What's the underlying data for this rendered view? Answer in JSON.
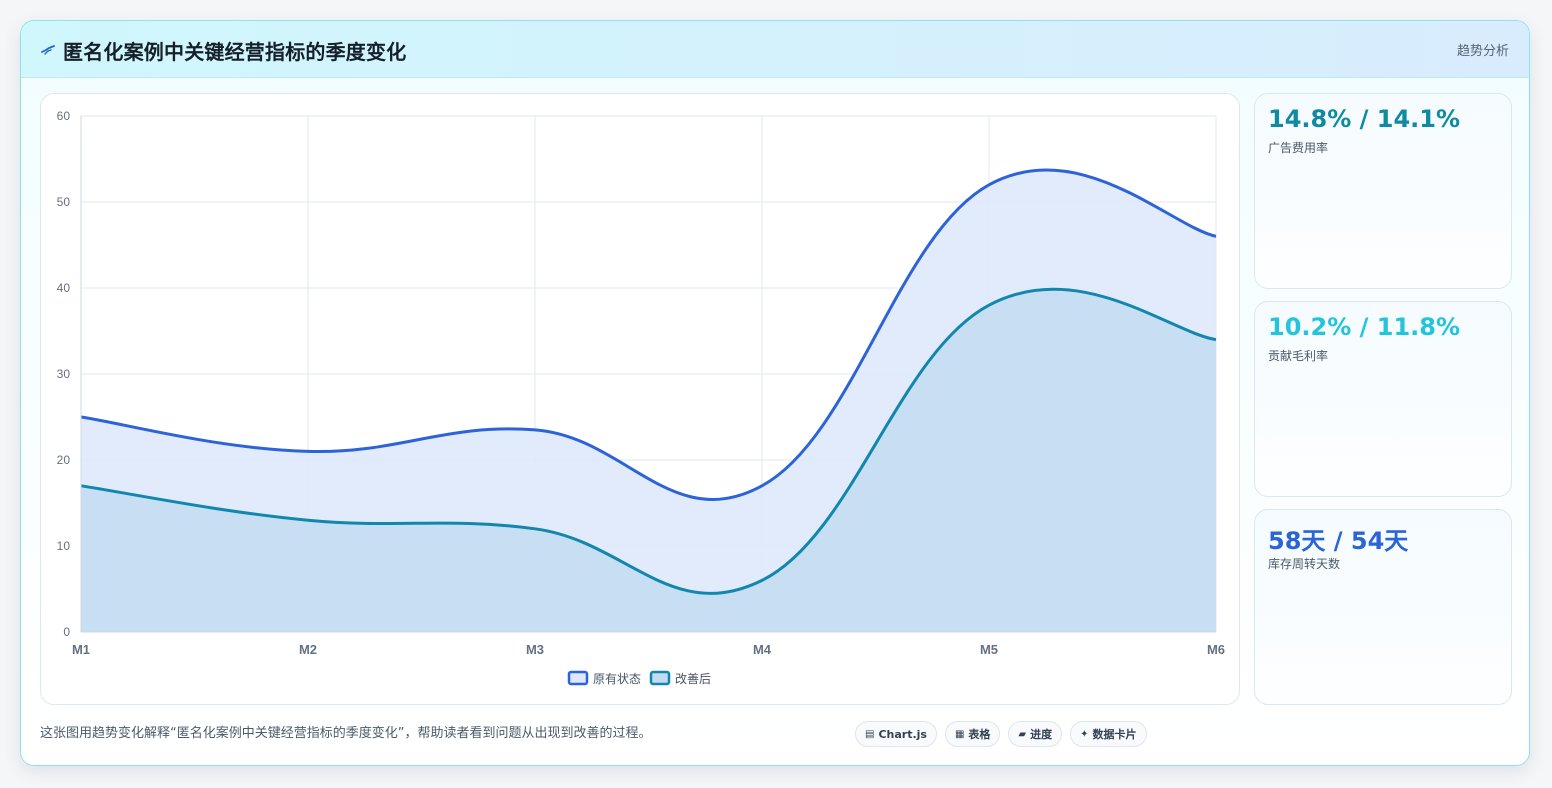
{
  "header": {
    "title": "匿名化案例中关键经营指标的季度变化",
    "tag": "趋势分析",
    "logo_icon": "pulse-line-icon"
  },
  "chart_data": {
    "type": "area",
    "title": "",
    "xlabel": "",
    "ylabel": "",
    "categories": [
      "M1",
      "M2",
      "M3",
      "M4",
      "M5",
      "M6"
    ],
    "ylim": [
      0,
      60
    ],
    "yticks": [
      0,
      10,
      20,
      30,
      40,
      50,
      60
    ],
    "grid": true,
    "smooth": true,
    "legend_position": "bottom-center",
    "series": [
      {
        "name": "原有状态",
        "values": [
          25,
          21,
          23.5,
          17,
          52,
          46
        ],
        "color": "#2d63d8",
        "fill": "#dde8fb"
      },
      {
        "name": "改善后",
        "values": [
          17,
          13,
          12,
          6,
          38,
          34
        ],
        "color": "#1287ad",
        "fill": "#c3dcf1"
      }
    ]
  },
  "stats": [
    {
      "value": "14.8% / 14.1%",
      "label": "广告费用率",
      "color": "#0e8aa1"
    },
    {
      "value": "10.2% / 11.8%",
      "label": "贡献毛利率",
      "color": "#22c5dc"
    },
    {
      "value": "58天 / 54天",
      "label": "库存周转天数",
      "color": "#2a64d6"
    }
  ],
  "footer": {
    "description": "这张图用趋势变化解释“匿名化案例中关键经营指标的季度变化”，帮助读者看到问题从出现到改善的过程。",
    "chips": [
      {
        "icon": "▤",
        "icon_name": "chart-icon",
        "label": "Chart.js"
      },
      {
        "icon": "▦",
        "icon_name": "table-icon",
        "label": "表格"
      },
      {
        "icon": "▰",
        "icon_name": "progress-icon",
        "label": "进度"
      },
      {
        "icon": "✦",
        "icon_name": "card-icon",
        "label": "数据卡片"
      }
    ]
  }
}
